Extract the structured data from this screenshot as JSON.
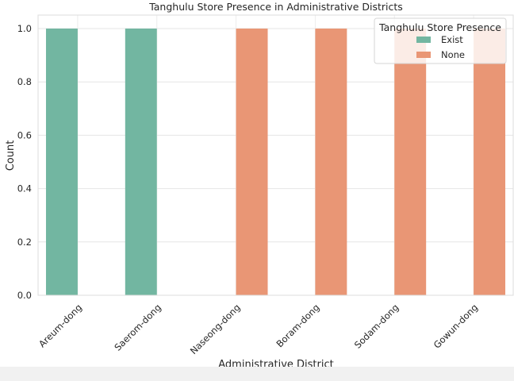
{
  "chart_data": {
    "type": "bar",
    "title": "Tanghulu Store Presence in Administrative Districts",
    "xlabel": "Administrative District",
    "ylabel": "Count",
    "categories": [
      "Areum-dong",
      "Saerom-dong",
      "Naseong-dong",
      "Boram-dong",
      "Sodam-dong",
      "Gowun-dong"
    ],
    "series": [
      {
        "name": "Exist",
        "color": "#72b6a1",
        "values": [
          1,
          1,
          0,
          0,
          0,
          0
        ]
      },
      {
        "name": "None",
        "color": "#e99675",
        "values": [
          0,
          0,
          1,
          1,
          1,
          1
        ]
      }
    ],
    "ylim": [
      0,
      1.0
    ],
    "yticks": [
      "0.0",
      "0.2",
      "0.4",
      "0.6",
      "0.8",
      "1.0"
    ],
    "grid": true,
    "legend": {
      "title": "Tanghulu Store Presence",
      "position": "top-right"
    }
  }
}
